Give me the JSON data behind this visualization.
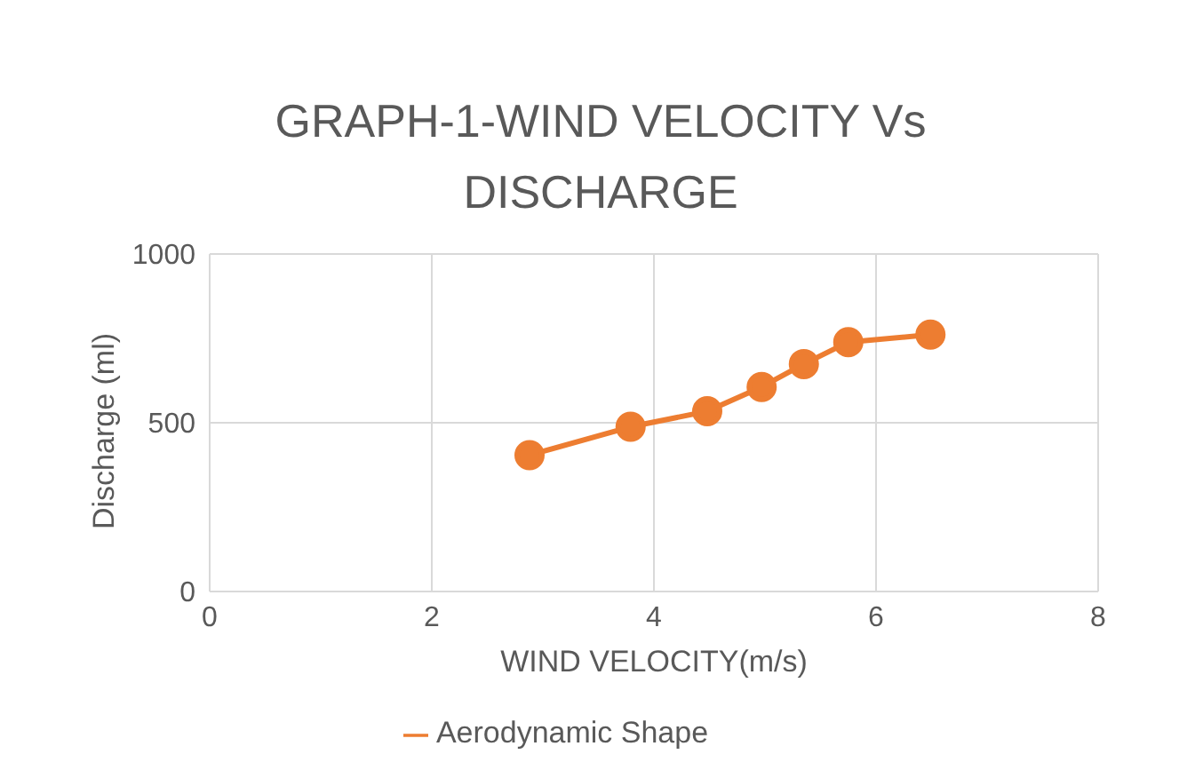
{
  "chart_data": {
    "type": "line",
    "title": "GRAPH-1-WIND VELOCITY Vs DISCHARGE",
    "xlabel": "WIND VELOCITY(m/s)",
    "ylabel": "Discharge (ml)",
    "x": [
      2.88,
      3.79,
      4.48,
      4.97,
      5.35,
      5.75,
      6.49
    ],
    "series": [
      {
        "name": "Aerodynamic Shape",
        "color": "#ed7d31",
        "values": [
          404,
          488,
          534,
          606,
          674,
          739,
          761
        ]
      }
    ],
    "xlim": [
      0,
      8
    ],
    "xticks": [
      0,
      2,
      4,
      6,
      8
    ],
    "ylim": [
      0,
      1000
    ],
    "yticks": [
      0,
      500,
      1000
    ],
    "grid": true,
    "legend": "bottom",
    "marker": "circle"
  }
}
